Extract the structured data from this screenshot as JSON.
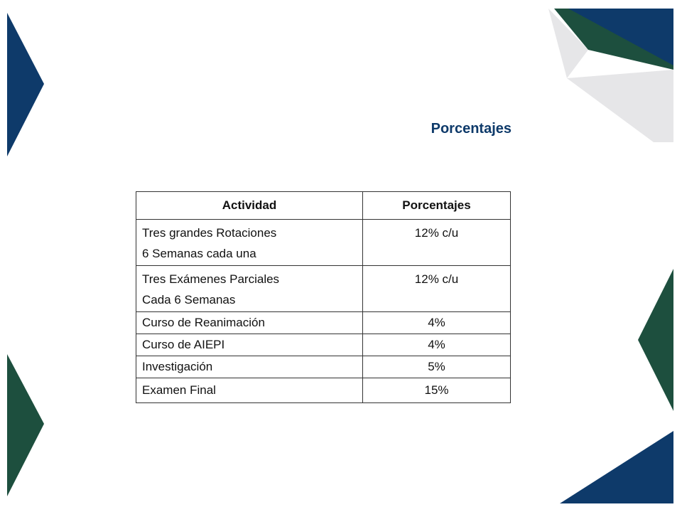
{
  "title": "Porcentajes",
  "table": {
    "headers": [
      "Actividad",
      "Porcentajes"
    ],
    "rows": [
      {
        "activity": [
          "Tres grandes Rotaciones",
          "6 Semanas cada una"
        ],
        "percent": "12% c/u"
      },
      {
        "activity": [
          "Tres Exámenes Parciales",
          "Cada 6 Semanas"
        ],
        "percent": "12% c/u"
      },
      {
        "activity": [
          "Curso de Reanimación"
        ],
        "percent": "4%"
      },
      {
        "activity": [
          "Curso de AIEPI"
        ],
        "percent": "4%"
      },
      {
        "activity": [
          "Investigación"
        ],
        "percent": "5%"
      },
      {
        "activity": [
          "Examen Final"
        ],
        "percent": "15%"
      }
    ]
  },
  "colors": {
    "navy": "#0e3a6a",
    "green": "#1d4f3e",
    "gray": "#e6e6e8"
  }
}
